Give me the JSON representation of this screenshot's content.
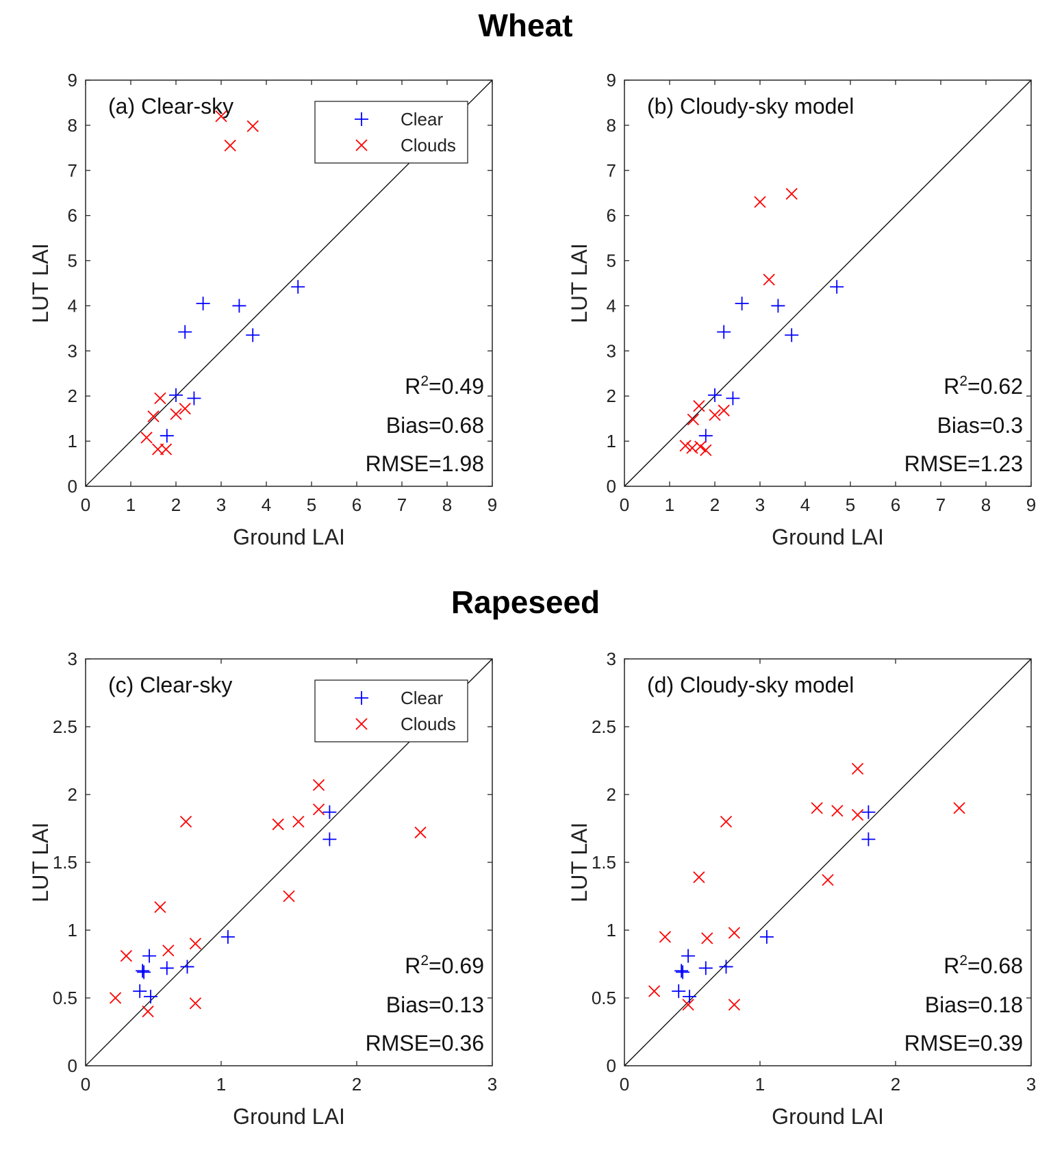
{
  "sections": [
    {
      "title": "Wheat",
      "title_id": "title-wheat"
    },
    {
      "title": "Rapeseed",
      "title_id": "title-rapeseed"
    }
  ],
  "colors": {
    "clear": "#0000ff",
    "clouds": "#ff0000",
    "axis": "#262626"
  },
  "legend": {
    "clear_label": "Clear",
    "clouds_label": "Clouds"
  },
  "chart_data": [
    {
      "type": "scatter",
      "panel_label": "(a) Clear-sky",
      "xlabel": "Ground LAI",
      "ylabel": "LUT LAI",
      "xlim": [
        0,
        9
      ],
      "ylim": [
        0,
        9
      ],
      "xticks": [
        0,
        1,
        2,
        3,
        4,
        5,
        6,
        7,
        8,
        9
      ],
      "yticks": [
        0,
        1,
        2,
        3,
        4,
        5,
        6,
        7,
        8,
        9
      ],
      "reference_line": "1:1",
      "legend": "top-right",
      "stats": {
        "r2": "0.49",
        "bias": "Bias=0.68",
        "rmse": "RMSE=1.98"
      },
      "series": [
        {
          "name": "Clear",
          "marker": "+",
          "points": [
            [
              1.8,
              1.12
            ],
            [
              2.0,
              2.02
            ],
            [
              2.2,
              3.42
            ],
            [
              2.4,
              1.95
            ],
            [
              2.6,
              4.05
            ],
            [
              3.4,
              4.0
            ],
            [
              3.7,
              3.35
            ],
            [
              4.7,
              4.42
            ]
          ]
        },
        {
          "name": "Clouds",
          "marker": "x",
          "points": [
            [
              1.35,
              1.08
            ],
            [
              1.5,
              1.55
            ],
            [
              1.6,
              0.82
            ],
            [
              1.65,
              1.95
            ],
            [
              1.78,
              0.82
            ],
            [
              2.0,
              1.6
            ],
            [
              2.2,
              1.72
            ],
            [
              3.0,
              8.2
            ],
            [
              3.2,
              7.55
            ],
            [
              3.7,
              7.98
            ]
          ]
        }
      ]
    },
    {
      "type": "scatter",
      "panel_label": "(b) Cloudy-sky model",
      "xlabel": "Ground LAI",
      "ylabel": "LUT LAI",
      "xlim": [
        0,
        9
      ],
      "ylim": [
        0,
        9
      ],
      "xticks": [
        0,
        1,
        2,
        3,
        4,
        5,
        6,
        7,
        8,
        9
      ],
      "yticks": [
        0,
        1,
        2,
        3,
        4,
        5,
        6,
        7,
        8,
        9
      ],
      "reference_line": "1:1",
      "stats": {
        "r2": "0.62",
        "bias": "Bias=0.3",
        "rmse": "RMSE=1.23"
      },
      "series": [
        {
          "name": "Clear",
          "marker": "+",
          "points": [
            [
              1.8,
              1.12
            ],
            [
              2.0,
              2.02
            ],
            [
              2.2,
              3.42
            ],
            [
              2.4,
              1.95
            ],
            [
              2.6,
              4.05
            ],
            [
              3.4,
              4.0
            ],
            [
              3.7,
              3.35
            ],
            [
              4.7,
              4.42
            ]
          ]
        },
        {
          "name": "Clouds",
          "marker": "x",
          "points": [
            [
              1.35,
              0.9
            ],
            [
              1.5,
              0.85
            ],
            [
              1.52,
              1.48
            ],
            [
              1.65,
              1.78
            ],
            [
              1.68,
              0.88
            ],
            [
              1.8,
              0.8
            ],
            [
              2.0,
              1.58
            ],
            [
              2.2,
              1.68
            ],
            [
              3.0,
              6.3
            ],
            [
              3.2,
              4.58
            ],
            [
              3.7,
              6.48
            ]
          ]
        }
      ]
    },
    {
      "type": "scatter",
      "panel_label": "(c) Clear-sky",
      "xlabel": "Ground LAI",
      "ylabel": "LUT LAI",
      "xlim": [
        0,
        3
      ],
      "ylim": [
        0,
        3
      ],
      "xticks": [
        0,
        1,
        2,
        3
      ],
      "yticks": [
        0,
        0.5,
        1,
        1.5,
        2,
        2.5,
        3
      ],
      "reference_line": "1:1",
      "legend": "top-right",
      "stats": {
        "r2": "0.69",
        "bias": "Bias=0.13",
        "rmse": "RMSE=0.36"
      },
      "series": [
        {
          "name": "Clear",
          "marker": "+",
          "points": [
            [
              0.4,
              0.55
            ],
            [
              0.42,
              0.7
            ],
            [
              0.43,
              0.69
            ],
            [
              0.47,
              0.81
            ],
            [
              0.48,
              0.51
            ],
            [
              0.6,
              0.72
            ],
            [
              0.75,
              0.73
            ],
            [
              1.05,
              0.95
            ],
            [
              1.8,
              1.87
            ],
            [
              1.8,
              1.67
            ]
          ]
        },
        {
          "name": "Clouds",
          "marker": "x",
          "points": [
            [
              0.22,
              0.5
            ],
            [
              0.3,
              0.81
            ],
            [
              0.46,
              0.4
            ],
            [
              0.55,
              1.17
            ],
            [
              0.61,
              0.85
            ],
            [
              0.74,
              1.8
            ],
            [
              0.81,
              0.9
            ],
            [
              0.81,
              0.46
            ],
            [
              1.42,
              1.78
            ],
            [
              1.5,
              1.25
            ],
            [
              1.57,
              1.8
            ],
            [
              1.72,
              2.07
            ],
            [
              1.72,
              1.89
            ],
            [
              2.47,
              1.72
            ]
          ]
        }
      ]
    },
    {
      "type": "scatter",
      "panel_label": "(d) Cloudy-sky model",
      "xlabel": "Ground LAI",
      "ylabel": "LUT LAI",
      "xlim": [
        0,
        3
      ],
      "ylim": [
        0,
        3
      ],
      "xticks": [
        0,
        1,
        2,
        3
      ],
      "yticks": [
        0,
        0.5,
        1,
        1.5,
        2,
        2.5,
        3
      ],
      "reference_line": "1:1",
      "stats": {
        "r2": "0.68",
        "bias": "Bias=0.18",
        "rmse": "RMSE=0.39"
      },
      "series": [
        {
          "name": "Clear",
          "marker": "+",
          "points": [
            [
              0.4,
              0.55
            ],
            [
              0.42,
              0.7
            ],
            [
              0.43,
              0.69
            ],
            [
              0.47,
              0.81
            ],
            [
              0.48,
              0.51
            ],
            [
              0.6,
              0.72
            ],
            [
              0.75,
              0.73
            ],
            [
              1.05,
              0.95
            ],
            [
              1.8,
              1.87
            ],
            [
              1.8,
              1.67
            ]
          ]
        },
        {
          "name": "Clouds",
          "marker": "x",
          "points": [
            [
              0.22,
              0.55
            ],
            [
              0.3,
              0.95
            ],
            [
              0.47,
              0.45
            ],
            [
              0.55,
              1.39
            ],
            [
              0.61,
              0.94
            ],
            [
              0.75,
              1.8
            ],
            [
              0.81,
              0.98
            ],
            [
              0.81,
              0.45
            ],
            [
              1.42,
              1.9
            ],
            [
              1.5,
              1.37
            ],
            [
              1.57,
              1.88
            ],
            [
              1.72,
              2.19
            ],
            [
              1.72,
              1.85
            ],
            [
              2.47,
              1.9
            ]
          ]
        }
      ]
    }
  ]
}
